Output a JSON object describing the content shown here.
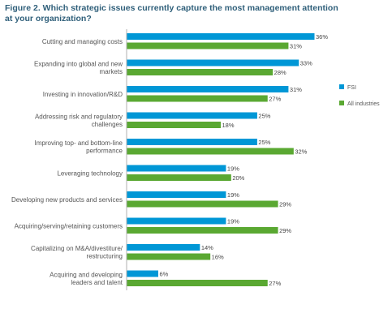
{
  "title": "Figure 2. Which strategic issues currently capture the most management attention at your organization?",
  "chart_data": {
    "type": "bar",
    "orientation": "horizontal",
    "categories": [
      [
        "Cutting and managing costs"
      ],
      [
        "Expanding into global and new",
        "markets"
      ],
      [
        "Investing in innovation/R&D"
      ],
      [
        "Addressing risk and regulatory",
        "challenges"
      ],
      [
        "Improving top- and bottom-line",
        "performance"
      ],
      [
        "Leveraging technology"
      ],
      [
        "Developing new products and services"
      ],
      [
        "Acquiring/serving/retaining customers"
      ],
      [
        "Capitalizing on M&A/divestiture/",
        "restructuring"
      ],
      [
        "Acquiring and developing",
        "leaders and talent"
      ]
    ],
    "series": [
      {
        "name": "FSI",
        "color": "#0097d6",
        "values": [
          36,
          33,
          31,
          25,
          25,
          19,
          19,
          19,
          14,
          6
        ]
      },
      {
        "name": "All industries",
        "color": "#5aa832",
        "values": [
          31,
          28,
          27,
          18,
          32,
          20,
          29,
          29,
          16,
          27
        ]
      }
    ],
    "value_suffix": "%",
    "legend_position": "right",
    "grid": false,
    "xlim": [
      0,
      36
    ]
  }
}
